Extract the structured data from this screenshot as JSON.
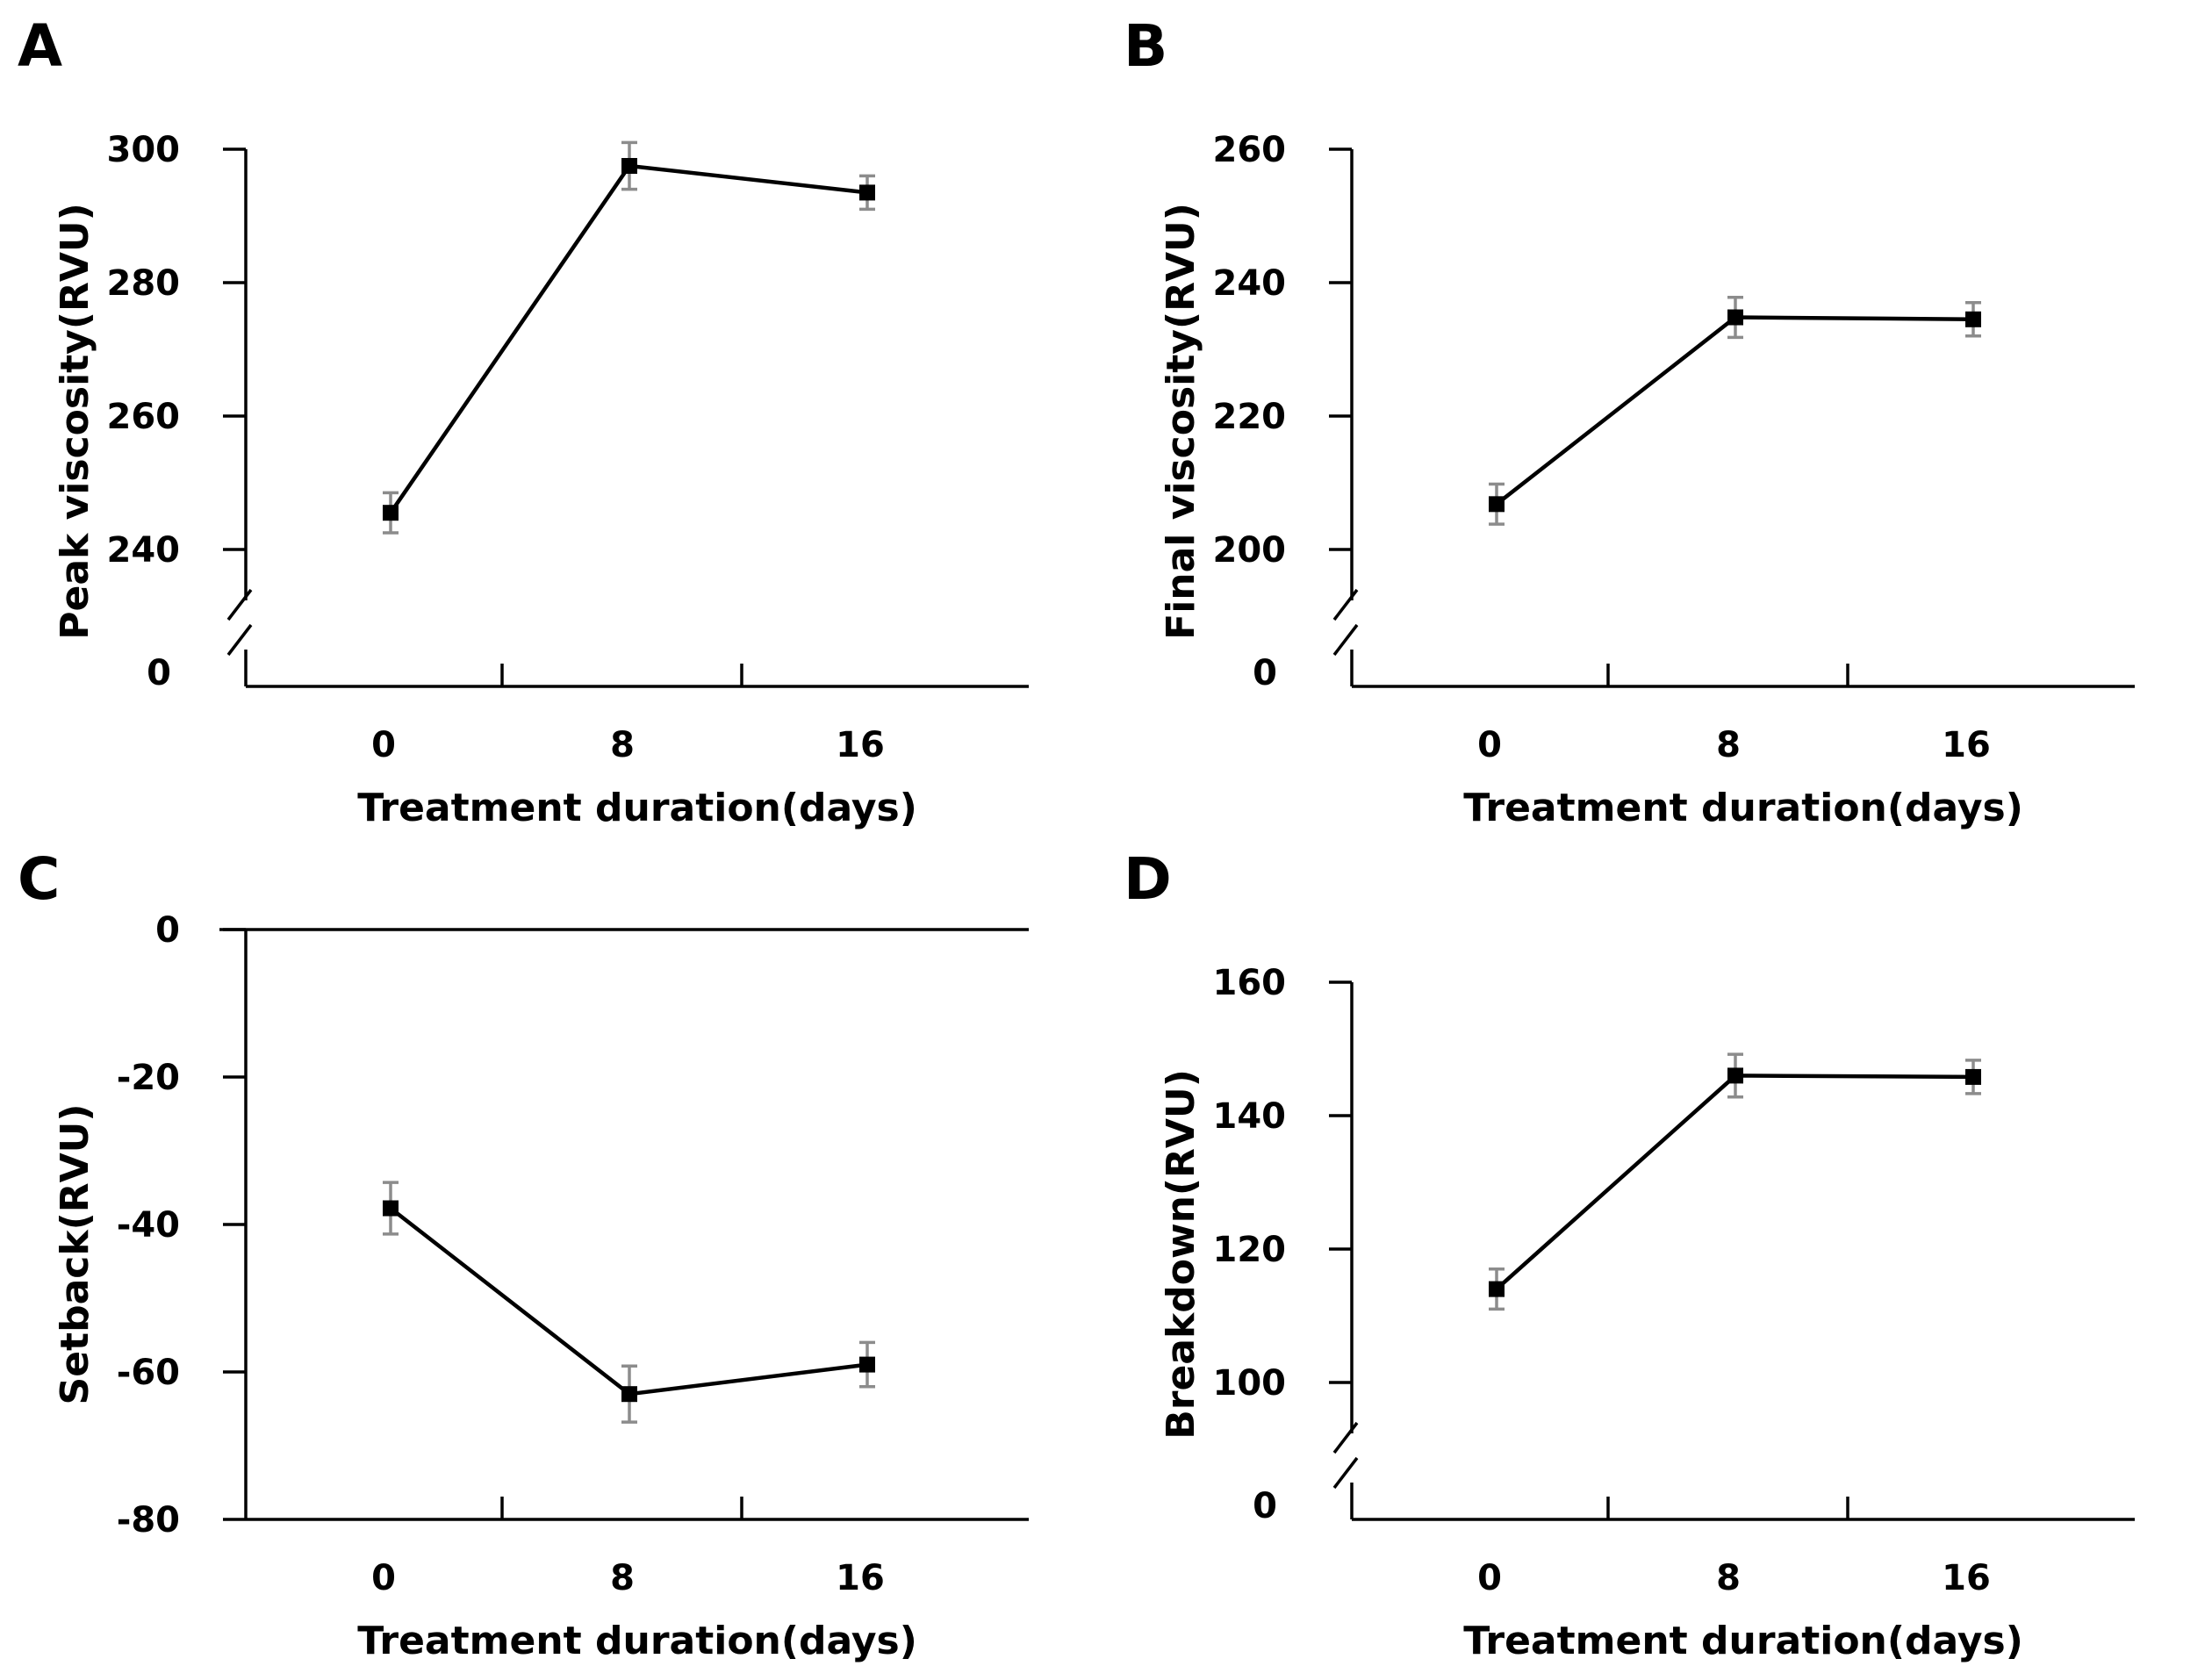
{
  "chart_data": [
    {
      "type": "line",
      "panel_label": "A",
      "xlabel": "Treatment duration(days)",
      "ylabel": "Peak viscosity(RVU)",
      "categories": [
        "0",
        "8",
        "16"
      ],
      "x_ticks": [
        "0",
        "8",
        "16"
      ],
      "y_ticks": [
        "300",
        "280",
        "260",
        "240",
        "0"
      ],
      "ylim": [
        240,
        300
      ],
      "axis_break": true,
      "axis_break_floor": "0",
      "series": [
        {
          "values": [
            245.5,
            297.5,
            293.5
          ],
          "error": [
            3.0,
            3.5,
            2.5
          ]
        }
      ]
    },
    {
      "type": "line",
      "panel_label": "B",
      "xlabel": "Treatment duration(days)",
      "ylabel": "Final viscosity(RVU)",
      "categories": [
        "0",
        "8",
        "16"
      ],
      "x_ticks": [
        "0",
        "8",
        "16"
      ],
      "y_ticks": [
        "260",
        "240",
        "220",
        "200",
        "0"
      ],
      "ylim": [
        200,
        260
      ],
      "axis_break": true,
      "axis_break_floor": "0",
      "series": [
        {
          "values": [
            206.8,
            234.8,
            234.5
          ],
          "error": [
            3.0,
            3.0,
            2.5
          ]
        }
      ]
    },
    {
      "type": "line",
      "panel_label": "C",
      "xlabel": "Treatment duration(days)",
      "ylabel": "Setback(RVU)",
      "categories": [
        "0",
        "8",
        "16"
      ],
      "x_ticks": [
        "0",
        "8",
        "16"
      ],
      "y_ticks": [
        "0",
        "-20",
        "-40",
        "-60",
        "-80"
      ],
      "ylim": [
        -80,
        0
      ],
      "axis_break": false,
      "series": [
        {
          "values": [
            -37.8,
            -63.0,
            -59.0
          ],
          "error": [
            3.5,
            3.8,
            3.0
          ]
        }
      ]
    },
    {
      "type": "line",
      "panel_label": "D",
      "xlabel": "Treatment duration(days)",
      "ylabel": "Breakdown(RVU)",
      "categories": [
        "0",
        "8",
        "16"
      ],
      "x_ticks": [
        "0",
        "8",
        "16"
      ],
      "y_ticks": [
        "160",
        "140",
        "120",
        "100",
        "0"
      ],
      "ylim": [
        100,
        160
      ],
      "axis_break": true,
      "axis_break_floor": "0",
      "series": [
        {
          "values": [
            114.0,
            146.0,
            145.8
          ],
          "error": [
            3.0,
            3.2,
            2.5
          ]
        }
      ]
    }
  ]
}
